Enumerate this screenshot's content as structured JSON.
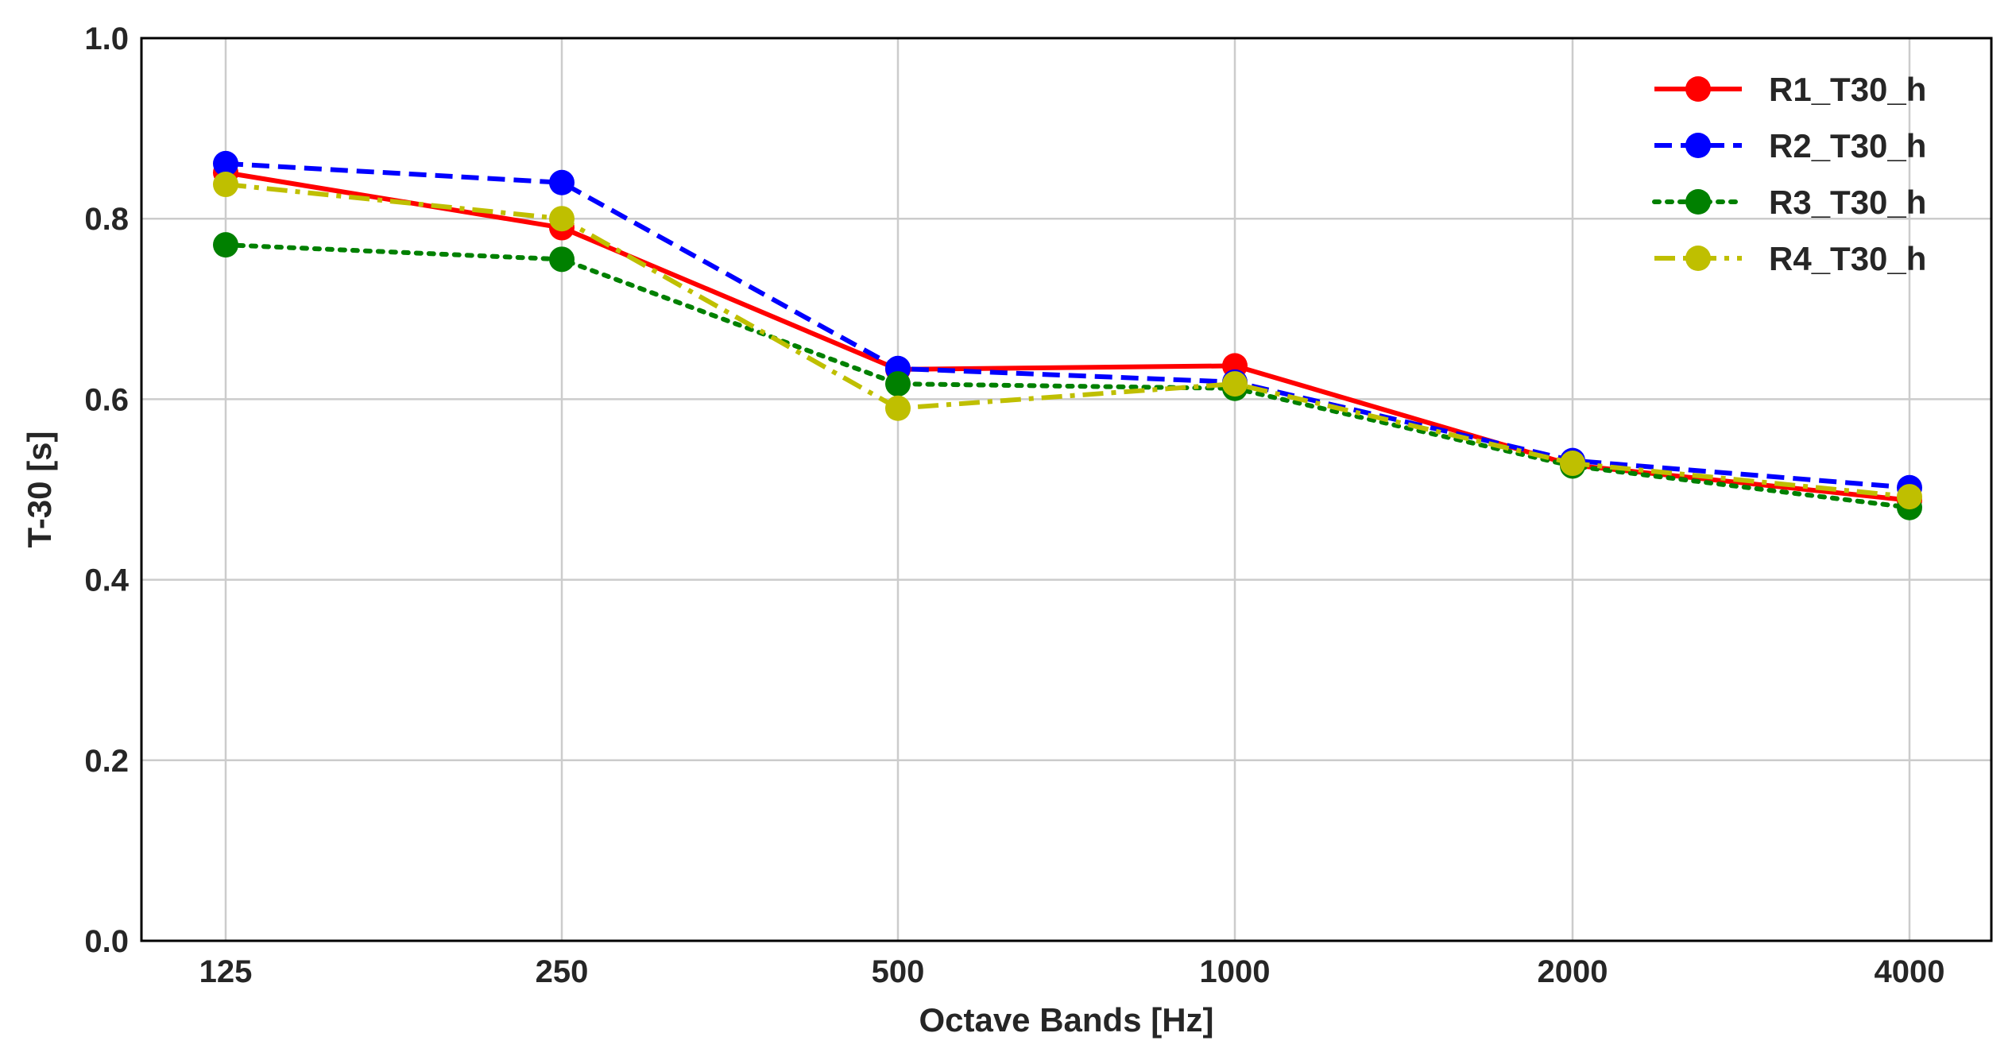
{
  "chart_data": {
    "type": "line",
    "title": "",
    "xlabel": "Octave Bands [Hz]",
    "ylabel": "T-30 [s]",
    "categories": [
      "125",
      "250",
      "500",
      "1000",
      "2000",
      "4000"
    ],
    "ylim": [
      0.0,
      1.0
    ],
    "yticks": [
      "0.0",
      "0.2",
      "0.4",
      "0.6",
      "0.8",
      "1.0"
    ],
    "grid": true,
    "legend_position": "top-right",
    "series": [
      {
        "name": "R1_T30_h",
        "color": "#ff0000",
        "dash": "solid",
        "values": [
          0.851,
          0.79,
          0.633,
          0.637,
          0.527,
          0.488
        ]
      },
      {
        "name": "R2_T30_h",
        "color": "#0000ff",
        "dash": "dashed",
        "values": [
          0.861,
          0.84,
          0.634,
          0.619,
          0.532,
          0.502
        ]
      },
      {
        "name": "R3_T30_h",
        "color": "#008000",
        "dash": "dotted",
        "values": [
          0.771,
          0.755,
          0.617,
          0.612,
          0.526,
          0.48
        ]
      },
      {
        "name": "R4_T30_h",
        "color": "#bfbf00",
        "dash": "dashdot",
        "values": [
          0.838,
          0.8,
          0.59,
          0.617,
          0.529,
          0.492
        ]
      }
    ]
  }
}
